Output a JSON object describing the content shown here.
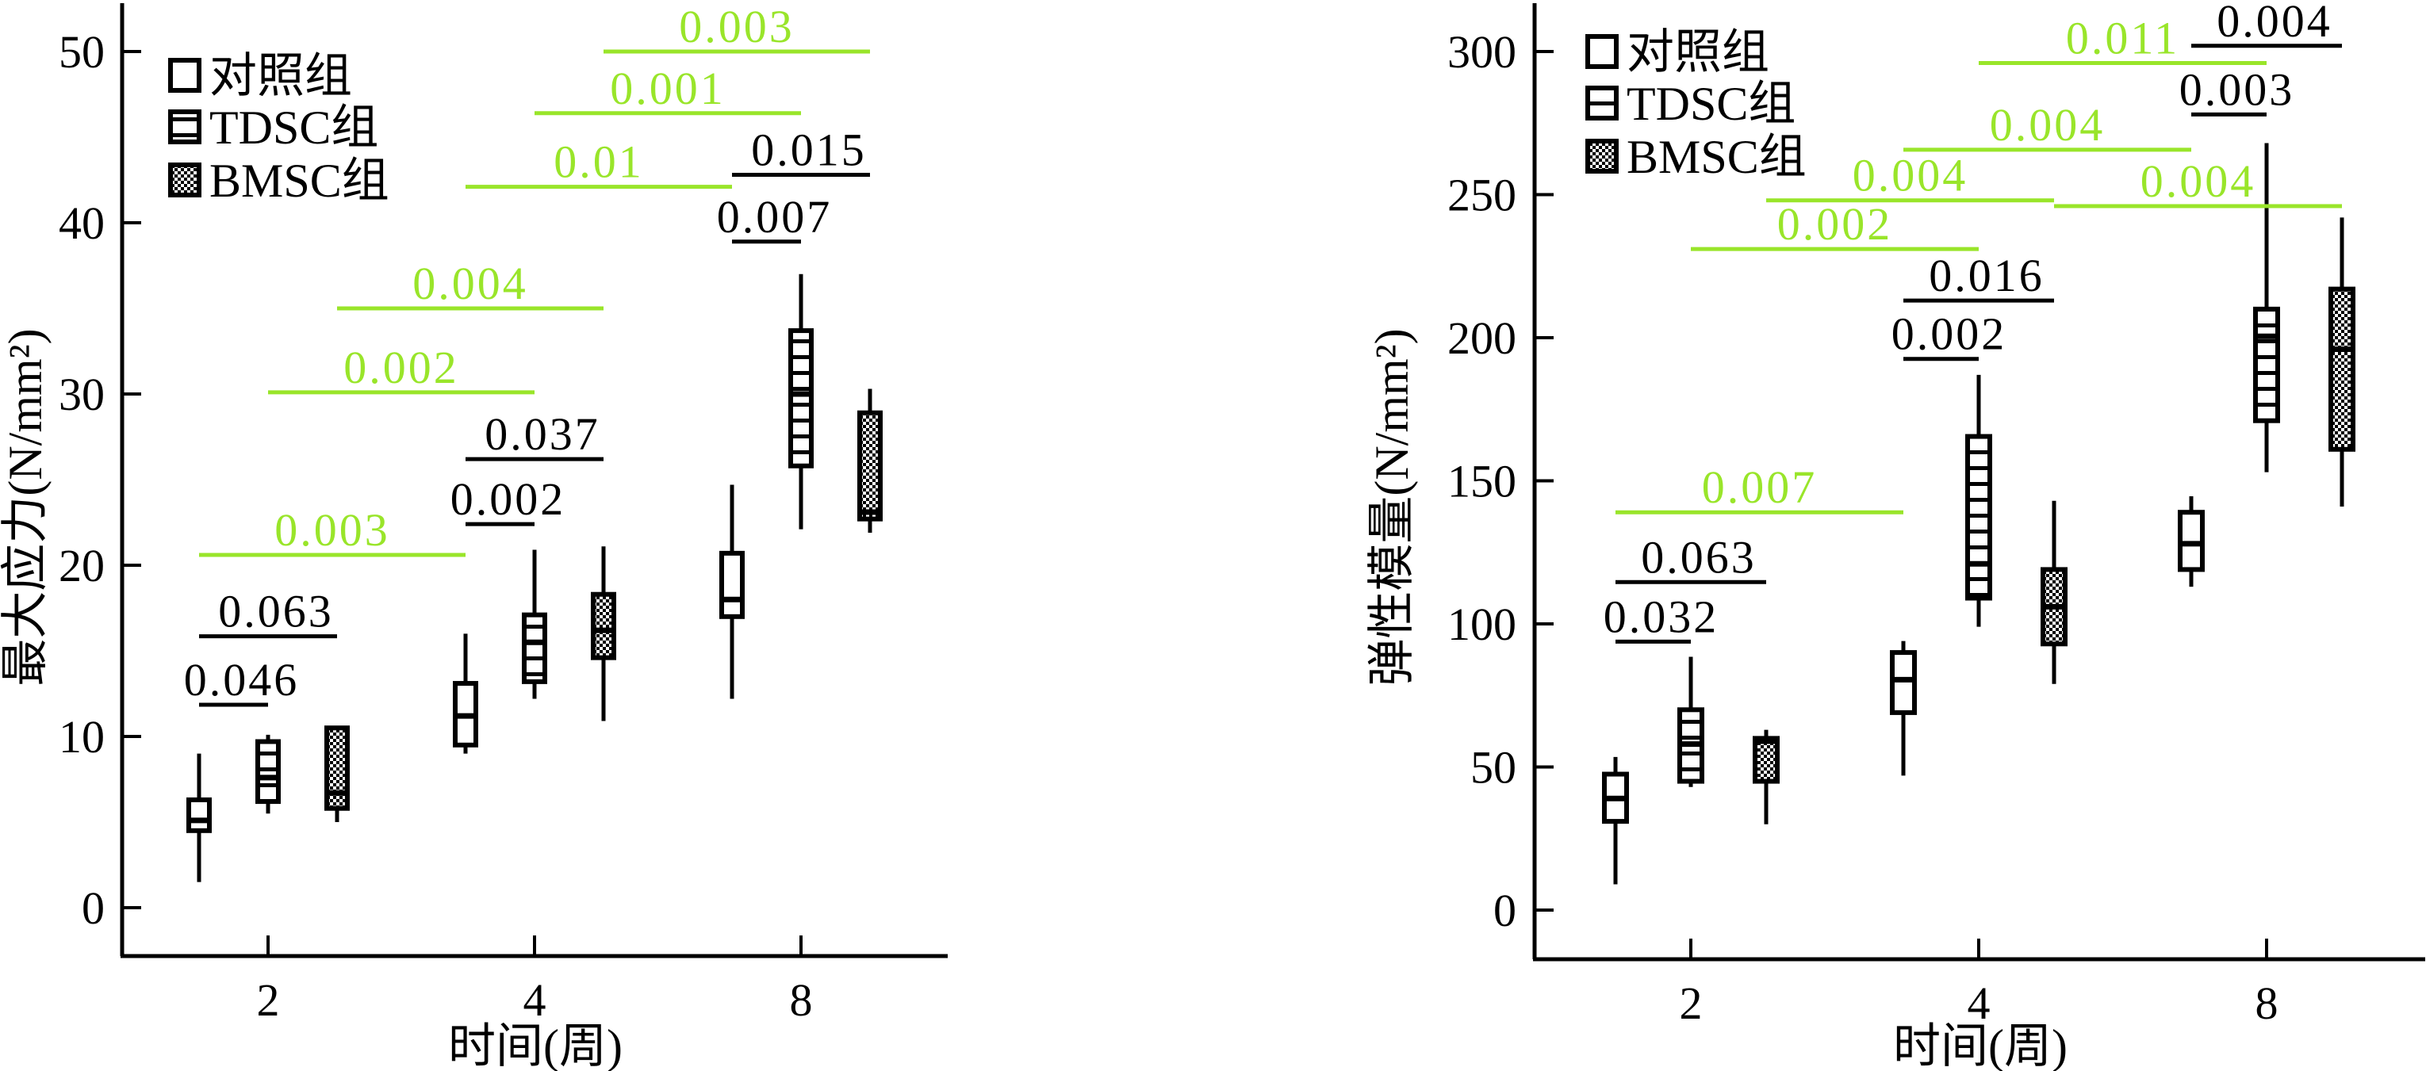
{
  "colors": {
    "axis": "#000000",
    "between_time": "#99e52a",
    "within_time": "#000000"
  },
  "legend": [
    {
      "label": "对照组",
      "pattern": "empty"
    },
    {
      "label": "TDSC组",
      "pattern": "horizontal-stripes"
    },
    {
      "label": "BMSC组",
      "pattern": "checkerboard"
    }
  ],
  "chart_data": [
    {
      "type": "boxplot",
      "xlabel": "时间(周)",
      "ylabel": "最大应力(N/mm²)",
      "categories": [
        "2",
        "4",
        "8"
      ],
      "yticks": [
        0,
        10,
        20,
        30,
        40,
        50
      ],
      "ylim": [
        -2.8,
        53
      ],
      "groups": [
        "对照组",
        "TDSC组",
        "BMSC组"
      ],
      "boxes": [
        {
          "category": "2",
          "group": 0,
          "min": 1.5,
          "q1": 4.5,
          "median": 5.1,
          "q3": 6.3,
          "max": 9.0
        },
        {
          "category": "2",
          "group": 1,
          "min": 5.5,
          "q1": 6.2,
          "median": 7.6,
          "q3": 9.7,
          "max": 10.1
        },
        {
          "category": "2",
          "group": 2,
          "min": 5.0,
          "q1": 5.8,
          "median": 6.7,
          "q3": 10.5,
          "max": 10.5
        },
        {
          "category": "4",
          "group": 0,
          "min": 9.0,
          "q1": 9.5,
          "median": 11.2,
          "q3": 13.1,
          "max": 16.0
        },
        {
          "category": "4",
          "group": 1,
          "min": 12.2,
          "q1": 13.2,
          "median": 15.5,
          "q3": 17.1,
          "max": 20.9
        },
        {
          "category": "4",
          "group": 2,
          "min": 10.9,
          "q1": 14.6,
          "median": 16.2,
          "q3": 18.3,
          "max": 21.1
        },
        {
          "category": "8",
          "group": 0,
          "min": 12.2,
          "q1": 17.0,
          "median": 18.0,
          "q3": 20.7,
          "max": 24.7
        },
        {
          "category": "8",
          "group": 1,
          "min": 22.1,
          "q1": 25.8,
          "median": 30.0,
          "q3": 33.7,
          "max": 37.0
        },
        {
          "category": "8",
          "group": 2,
          "min": 21.9,
          "q1": 22.7,
          "median": 23.1,
          "q3": 28.9,
          "max": 30.3
        }
      ],
      "comparisons": [
        {
          "p": "0.046",
          "y": 11.85,
          "from": [
            "2",
            0
          ],
          "to": [
            "2",
            1
          ],
          "kind": "within_time"
        },
        {
          "p": "0.063",
          "y": 15.85,
          "from": [
            "2",
            0
          ],
          "to": [
            "2",
            2
          ],
          "kind": "within_time"
        },
        {
          "p": "0.003",
          "y": 20.6,
          "from": [
            "2",
            0
          ],
          "to": [
            "4",
            0
          ],
          "kind": "between_time"
        },
        {
          "p": "0.002",
          "y": 22.4,
          "from": [
            "4",
            0
          ],
          "to": [
            "4",
            1
          ],
          "kind": "within_time"
        },
        {
          "p": "0.037",
          "y": 26.2,
          "from": [
            "4",
            0
          ],
          "to": [
            "4",
            2
          ],
          "kind": "within_time"
        },
        {
          "p": "0.002",
          "y": 30.1,
          "from": [
            "2",
            1
          ],
          "to": [
            "4",
            1
          ],
          "kind": "between_time"
        },
        {
          "p": "0.004",
          "y": 35.0,
          "from": [
            "2",
            2
          ],
          "to": [
            "4",
            2
          ],
          "kind": "between_time"
        },
        {
          "p": "0.007",
          "y": 38.9,
          "from": [
            "8",
            0
          ],
          "to": [
            "8",
            1
          ],
          "kind": "within_time"
        },
        {
          "p": "0.01",
          "y": 42.1,
          "from": [
            "4",
            0
          ],
          "to": [
            "8",
            0
          ],
          "kind": "between_time"
        },
        {
          "p": "0.015",
          "y": 42.8,
          "from": [
            "8",
            0
          ],
          "to": [
            "8",
            2
          ],
          "kind": "within_time"
        },
        {
          "p": "0.001",
          "y": 46.4,
          "from": [
            "4",
            1
          ],
          "to": [
            "8",
            1
          ],
          "kind": "between_time"
        },
        {
          "p": "0.003",
          "y": 50.0,
          "from": [
            "4",
            2
          ],
          "to": [
            "8",
            2
          ],
          "kind": "between_time"
        }
      ]
    },
    {
      "type": "boxplot",
      "xlabel": "时间(周)",
      "ylabel": "弹性模量(N/mm²)",
      "categories": [
        "2",
        "4",
        "8"
      ],
      "yticks": [
        0,
        50,
        100,
        150,
        200,
        250,
        300
      ],
      "ylim": [
        -17,
        318
      ],
      "groups": [
        "对照组",
        "TDSC组",
        "BMSC组"
      ],
      "boxes": [
        {
          "category": "2",
          "group": 0,
          "min": 9,
          "q1": 31,
          "median": 39,
          "q3": 47.5,
          "max": 53.5
        },
        {
          "category": "2",
          "group": 1,
          "min": 43,
          "q1": 45,
          "median": 58,
          "q3": 70,
          "max": 88.5
        },
        {
          "category": "2",
          "group": 2,
          "min": 30,
          "q1": 45,
          "median": 59,
          "q3": 60,
          "max": 63
        },
        {
          "category": "4",
          "group": 0,
          "min": 47,
          "q1": 69,
          "median": 80.5,
          "q3": 90,
          "max": 94
        },
        {
          "category": "4",
          "group": 1,
          "min": 99,
          "q1": 109,
          "median": 121,
          "q3": 165.5,
          "max": 187
        },
        {
          "category": "4",
          "group": 2,
          "min": 79,
          "q1": 93,
          "median": 106,
          "q3": 119,
          "max": 143
        },
        {
          "category": "8",
          "group": 0,
          "min": 113,
          "q1": 119,
          "median": 128,
          "q3": 139,
          "max": 144.6
        },
        {
          "category": "8",
          "group": 1,
          "min": 153,
          "q1": 171,
          "median": 200.5,
          "q3": 210,
          "max": 268
        },
        {
          "category": "8",
          "group": 2,
          "min": 141,
          "q1": 161,
          "median": 196,
          "q3": 217,
          "max": 242
        }
      ],
      "comparisons": [
        {
          "p": "0.032",
          "y": 93.8,
          "from": [
            "2",
            0
          ],
          "to": [
            "2",
            1
          ],
          "kind": "within_time"
        },
        {
          "p": "0.063",
          "y": 114.6,
          "from": [
            "2",
            0
          ],
          "to": [
            "2",
            2
          ],
          "kind": "within_time"
        },
        {
          "p": "0.007",
          "y": 139,
          "from": [
            "2",
            0
          ],
          "to": [
            "4",
            0
          ],
          "kind": "between_time"
        },
        {
          "p": "0.002",
          "y": 192.6,
          "from": [
            "4",
            0
          ],
          "to": [
            "4",
            1
          ],
          "kind": "within_time"
        },
        {
          "p": "0.016",
          "y": 213,
          "from": [
            "4",
            0
          ],
          "to": [
            "4",
            2
          ],
          "kind": "within_time"
        },
        {
          "p": "0.002",
          "y": 231,
          "from": [
            "2",
            1
          ],
          "to": [
            "4",
            1
          ],
          "kind": "between_time"
        },
        {
          "p": "0.004",
          "y": 248,
          "from": [
            "2",
            2
          ],
          "to": [
            "4",
            2
          ],
          "kind": "between_time"
        },
        {
          "p": "0.004",
          "y": 246,
          "from": [
            "4",
            2
          ],
          "to": [
            "8",
            2
          ],
          "kind": "between_time"
        },
        {
          "p": "0.004",
          "y": 265.7,
          "from": [
            "4",
            0
          ],
          "to": [
            "8",
            0
          ],
          "kind": "between_time"
        },
        {
          "p": "0.003",
          "y": 278,
          "from": [
            "8",
            0
          ],
          "to": [
            "8",
            1
          ],
          "kind": "within_time"
        },
        {
          "p": "0.011",
          "y": 296,
          "from": [
            "4",
            1
          ],
          "to": [
            "8",
            1
          ],
          "kind": "between_time"
        },
        {
          "p": "0.004",
          "y": 302,
          "from": [
            "8",
            0
          ],
          "to": [
            "8",
            2
          ],
          "kind": "within_time"
        }
      ]
    }
  ]
}
